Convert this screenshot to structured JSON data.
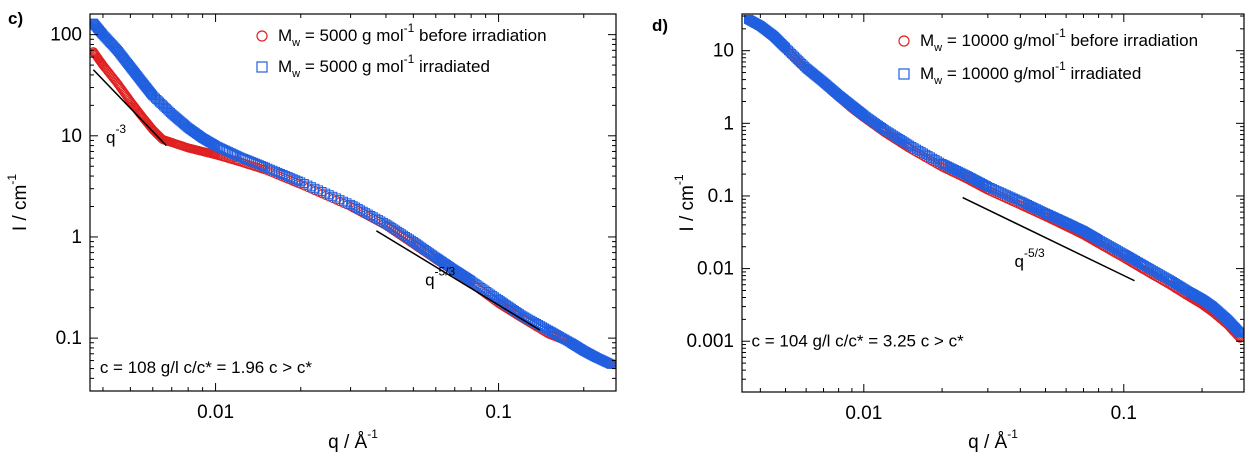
{
  "chart_data": [
    {
      "type": "scatter",
      "panel_label": "c)",
      "xscale": "log",
      "yscale": "log",
      "xlim": [
        0.0036,
        0.26
      ],
      "ylim": [
        0.03,
        160
      ],
      "xticks": [
        {
          "value": 0.01,
          "label": "0.01"
        },
        {
          "value": 0.1,
          "label": "0.1"
        }
      ],
      "yticks": [
        {
          "value": 0.1,
          "label": "0.1"
        },
        {
          "value": 1,
          "label": "1"
        },
        {
          "value": 10,
          "label": "10"
        },
        {
          "value": 100,
          "label": "100"
        }
      ],
      "xlabel": {
        "base": "q / Å",
        "sup": "-1"
      },
      "ylabel": {
        "base": "I / cm",
        "sup": "-1"
      },
      "grid": false,
      "legend_position": "top-right",
      "series": [
        {
          "legend_parts": {
            "pre": "M",
            "sub": "w",
            "mid": " = 5000 g mol",
            "sup": "-1",
            "post": " before irradiation"
          },
          "marker": "circle",
          "color": "#e02020",
          "points": [
            [
              0.0037,
              68
            ],
            [
              0.004,
              50
            ],
            [
              0.0045,
              33
            ],
            [
              0.005,
              22
            ],
            [
              0.0055,
              15.5
            ],
            [
              0.006,
              11.5
            ],
            [
              0.0065,
              9.2
            ],
            [
              0.007,
              8.6
            ],
            [
              0.008,
              7.6
            ],
            [
              0.009,
              7.0
            ],
            [
              0.01,
              6.5
            ],
            [
              0.012,
              5.6
            ],
            [
              0.015,
              4.6
            ],
            [
              0.02,
              3.3
            ],
            [
              0.03,
              2.0
            ],
            [
              0.04,
              1.3
            ],
            [
              0.05,
              0.85
            ],
            [
              0.06,
              0.6
            ],
            [
              0.07,
              0.45
            ],
            [
              0.08,
              0.35
            ],
            [
              0.1,
              0.22
            ],
            [
              0.12,
              0.16
            ],
            [
              0.15,
              0.11
            ],
            [
              0.18,
              0.09
            ],
            [
              0.2,
              0.075
            ],
            [
              0.22,
              0.065
            ],
            [
              0.25,
              0.055
            ]
          ]
        },
        {
          "legend_parts": {
            "pre": "M",
            "sub": "w",
            "mid": " = 5000 g mol",
            "sup": "-1",
            "post": " irradiated"
          },
          "marker": "square",
          "color": "#2060e0",
          "points": [
            [
              0.0037,
              130
            ],
            [
              0.004,
              100
            ],
            [
              0.0045,
              70
            ],
            [
              0.005,
              48
            ],
            [
              0.0055,
              34
            ],
            [
              0.006,
              25
            ],
            [
              0.007,
              16.5
            ],
            [
              0.008,
              12
            ],
            [
              0.009,
              9.5
            ],
            [
              0.01,
              8.0
            ],
            [
              0.012,
              6.3
            ],
            [
              0.015,
              4.9
            ],
            [
              0.02,
              3.5
            ],
            [
              0.03,
              2.1
            ],
            [
              0.04,
              1.35
            ],
            [
              0.05,
              0.9
            ],
            [
              0.06,
              0.63
            ],
            [
              0.07,
              0.47
            ],
            [
              0.08,
              0.37
            ],
            [
              0.1,
              0.24
            ],
            [
              0.12,
              0.17
            ],
            [
              0.15,
              0.12
            ],
            [
              0.18,
              0.09
            ],
            [
              0.2,
              0.075
            ],
            [
              0.22,
              0.065
            ],
            [
              0.25,
              0.055
            ]
          ]
        }
      ],
      "guide_lines": [
        {
          "label_base": "q",
          "label_sup": "-3",
          "from": [
            0.0037,
            45
          ],
          "to": [
            0.0067,
            8.0
          ],
          "label_at": [
            0.0041,
            8.5
          ]
        },
        {
          "label_base": "q",
          "label_sup": "-5/3",
          "from": [
            0.037,
            1.15
          ],
          "to": [
            0.14,
            0.12
          ],
          "label_at": [
            0.055,
            0.33
          ]
        }
      ],
      "annotation": {
        "text": "c = 108 g/l c/c* = 1.96 c > c*",
        "at": [
          0.0039,
          0.045
        ]
      }
    },
    {
      "type": "scatter",
      "panel_label": "d)",
      "xscale": "log",
      "yscale": "log",
      "xlim": [
        0.0034,
        0.29
      ],
      "ylim": [
        0.0002,
        32
      ],
      "xticks": [
        {
          "value": 0.01,
          "label": "0.01"
        },
        {
          "value": 0.1,
          "label": "0.1"
        }
      ],
      "yticks": [
        {
          "value": 0.001,
          "label": "0.001"
        },
        {
          "value": 0.01,
          "label": "0.01"
        },
        {
          "value": 0.1,
          "label": "0.1"
        },
        {
          "value": 1,
          "label": "1"
        },
        {
          "value": 10,
          "label": "10"
        }
      ],
      "xlabel": {
        "base": "q / Å",
        "sup": "-1"
      },
      "ylabel": {
        "base": "I / cm",
        "sup": "-1"
      },
      "grid": false,
      "legend_position": "top-right",
      "series": [
        {
          "legend_parts": {
            "pre": "M",
            "sub": "w",
            "mid": " = 10000 g/mol",
            "sup": "-1",
            "post": " before irradiation"
          },
          "marker": "circle",
          "color": "#e02020",
          "points": [
            [
              0.0036,
              26
            ],
            [
              0.004,
              21
            ],
            [
              0.0045,
              15
            ],
            [
              0.005,
              10.5
            ],
            [
              0.006,
              5.5
            ],
            [
              0.007,
              3.5
            ],
            [
              0.008,
              2.3
            ],
            [
              0.009,
              1.6
            ],
            [
              0.01,
              1.2
            ],
            [
              0.012,
              0.75
            ],
            [
              0.015,
              0.45
            ],
            [
              0.02,
              0.25
            ],
            [
              0.025,
              0.17
            ],
            [
              0.03,
              0.12
            ],
            [
              0.04,
              0.075
            ],
            [
              0.05,
              0.052
            ],
            [
              0.06,
              0.038
            ],
            [
              0.07,
              0.029
            ],
            [
              0.08,
              0.022
            ],
            [
              0.1,
              0.014
            ],
            [
              0.12,
              0.0095
            ],
            [
              0.15,
              0.006
            ],
            [
              0.18,
              0.004
            ],
            [
              0.2,
              0.0032
            ],
            [
              0.22,
              0.0025
            ],
            [
              0.25,
              0.0017
            ],
            [
              0.28,
              0.0011
            ]
          ]
        },
        {
          "legend_parts": {
            "pre": "M",
            "sub": "w",
            "mid": " = 10000 g/mol",
            "sup": "-1",
            "post": " irradiated"
          },
          "marker": "square",
          "color": "#2060e0",
          "points": [
            [
              0.0036,
              27
            ],
            [
              0.004,
              22
            ],
            [
              0.0045,
              16
            ],
            [
              0.005,
              11
            ],
            [
              0.006,
              5.8
            ],
            [
              0.007,
              3.7
            ],
            [
              0.008,
              2.45
            ],
            [
              0.009,
              1.75
            ],
            [
              0.01,
              1.3
            ],
            [
              0.012,
              0.82
            ],
            [
              0.015,
              0.5
            ],
            [
              0.02,
              0.28
            ],
            [
              0.025,
              0.19
            ],
            [
              0.03,
              0.135
            ],
            [
              0.04,
              0.085
            ],
            [
              0.05,
              0.058
            ],
            [
              0.06,
              0.043
            ],
            [
              0.07,
              0.033
            ],
            [
              0.08,
              0.025
            ],
            [
              0.1,
              0.016
            ],
            [
              0.12,
              0.011
            ],
            [
              0.15,
              0.007
            ],
            [
              0.18,
              0.0047
            ],
            [
              0.2,
              0.0038
            ],
            [
              0.22,
              0.003
            ],
            [
              0.25,
              0.002
            ],
            [
              0.28,
              0.0013
            ]
          ]
        }
      ],
      "guide_lines": [
        {
          "label_base": "q",
          "label_sup": "-5/3",
          "from": [
            0.024,
            0.095
          ],
          "to": [
            0.11,
            0.0068
          ],
          "label_at": [
            0.038,
            0.0105
          ]
        }
      ],
      "annotation": {
        "text": "c = 104 g/l c/c* = 3.25 c > c*",
        "at": [
          0.0037,
          0.00085
        ]
      }
    }
  ]
}
